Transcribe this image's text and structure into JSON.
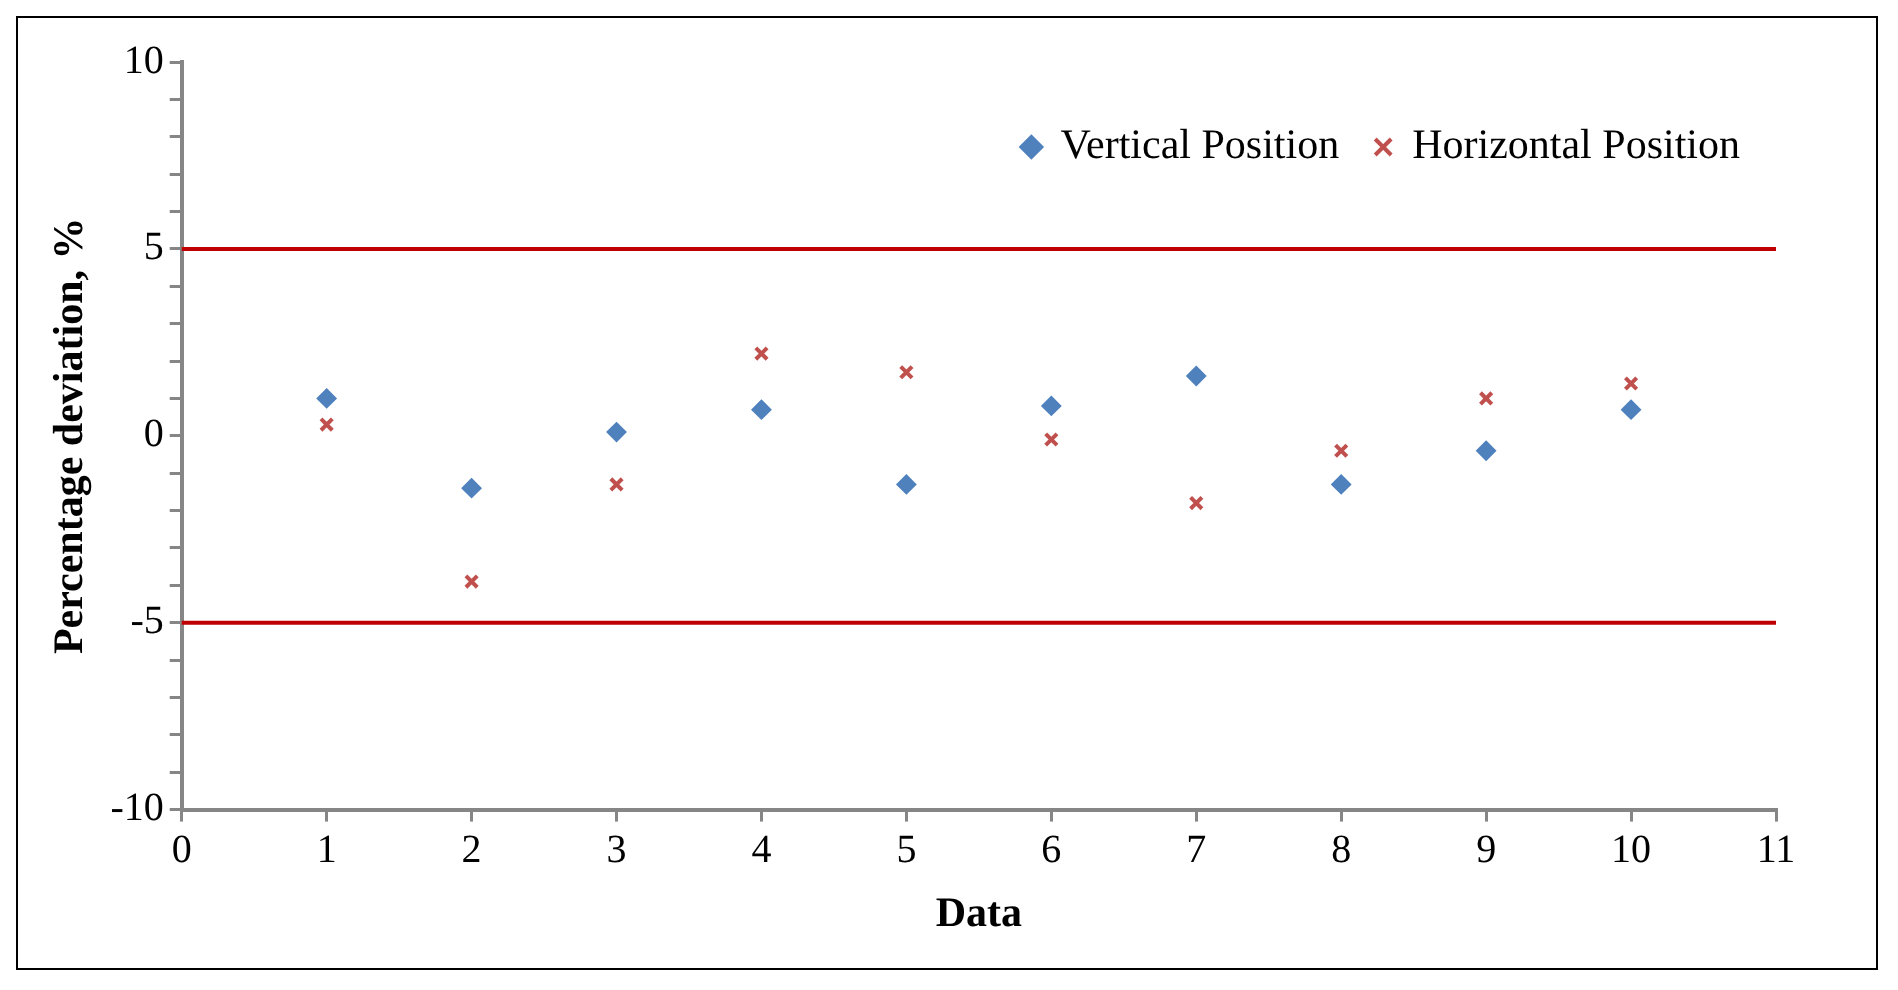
{
  "chart_data": {
    "type": "scatter",
    "xlabel": "Data",
    "ylabel": "Percentage deviation, %",
    "x": [
      1,
      2,
      3,
      4,
      5,
      6,
      7,
      8,
      9,
      10
    ],
    "series": [
      {
        "name": "Vertical Position",
        "color": "#4f81bd",
        "marker": "diamond",
        "values": [
          1.0,
          -1.4,
          0.1,
          0.7,
          -1.3,
          0.8,
          1.6,
          -1.3,
          -0.4,
          0.7
        ]
      },
      {
        "name": "Horizontal Position",
        "color": "#c0504d",
        "marker": "cross",
        "values": [
          0.3,
          -3.9,
          -1.3,
          2.2,
          1.7,
          -0.1,
          -1.8,
          -0.4,
          1.0,
          1.4
        ]
      }
    ],
    "xlim": [
      0,
      11
    ],
    "xticks": [
      0,
      1,
      2,
      3,
      4,
      5,
      6,
      7,
      8,
      9,
      10,
      11
    ],
    "ylim": [
      -10,
      10
    ],
    "yticks": [
      -10,
      {
        "value": -9,
        "label": null
      },
      {
        "value": -8,
        "label": null
      },
      {
        "value": -7,
        "label": null
      },
      {
        "value": -6,
        "label": null
      },
      -5,
      {
        "value": -4,
        "label": null
      },
      {
        "value": -3,
        "label": null
      },
      {
        "value": -2,
        "label": null
      },
      {
        "value": -1,
        "label": null
      },
      0,
      {
        "value": 1,
        "label": null
      },
      {
        "value": 2,
        "label": null
      },
      {
        "value": 3,
        "label": null
      },
      {
        "value": 4,
        "label": null
      },
      5,
      {
        "value": 6,
        "label": null
      },
      {
        "value": 7,
        "label": null
      },
      {
        "value": 8,
        "label": null
      },
      {
        "value": 9,
        "label": null
      },
      10
    ],
    "ref_lines": [
      {
        "axis": "y",
        "value": 5,
        "color": "#c00000"
      },
      {
        "axis": "y",
        "value": -5,
        "color": "#c00000"
      }
    ],
    "grid": false,
    "legend": "top right"
  }
}
